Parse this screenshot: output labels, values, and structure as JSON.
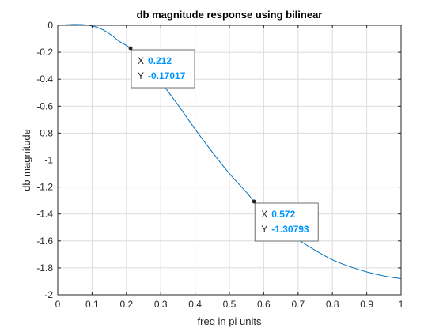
{
  "chart_data": {
    "type": "line",
    "title": "db magnitude response using bilinear",
    "xlabel": "freq in pi units",
    "ylabel": "db magnitude",
    "xlim": [
      0,
      1
    ],
    "ylim": [
      -2,
      0
    ],
    "xticks": [
      0,
      0.1,
      0.2,
      0.3,
      0.4,
      0.5,
      0.6,
      0.7,
      0.8,
      0.9,
      1
    ],
    "xtick_labels": [
      "0",
      "0.1",
      "0.2",
      "0.3",
      "0.4",
      "0.5",
      "0.6",
      "0.7",
      "0.8",
      "0.9",
      "1"
    ],
    "yticks": [
      0,
      -0.2,
      -0.4,
      -0.6,
      -0.8,
      -1,
      -1.2,
      -1.4,
      -1.6,
      -1.8,
      -2
    ],
    "ytick_labels": [
      "0",
      "-0.2",
      "-0.4",
      "-0.6",
      "-0.8",
      "-1",
      "-1.2",
      "-1.4",
      "-1.6",
      "-1.8",
      "-2"
    ],
    "grid": true,
    "line_color": "#0072BD",
    "series": [
      {
        "x": [
          0,
          0.02,
          0.04,
          0.06,
          0.08,
          0.1,
          0.12,
          0.14,
          0.16,
          0.18,
          0.2,
          0.212,
          0.25,
          0.3,
          0.35,
          0.4,
          0.45,
          0.5,
          0.55,
          0.572,
          0.6,
          0.65,
          0.7,
          0.75,
          0.8,
          0.85,
          0.9,
          0.95,
          1.0
        ],
        "y": [
          0,
          0.003,
          0.006,
          0.006,
          0.004,
          -0.005,
          -0.02,
          -0.045,
          -0.08,
          -0.12,
          -0.15,
          -0.17017,
          -0.26,
          -0.42,
          -0.59,
          -0.77,
          -0.94,
          -1.1,
          -1.24,
          -1.30793,
          -1.38,
          -1.49,
          -1.59,
          -1.67,
          -1.74,
          -1.79,
          -1.83,
          -1.86,
          -1.88
        ]
      }
    ],
    "datatips": [
      {
        "x_key": "X",
        "x_value": "0.212",
        "y_key": "Y",
        "y_value": "-0.17017",
        "x": 0.212,
        "y": -0.17017
      },
      {
        "x_key": "X",
        "x_value": "0.572",
        "y_key": "Y",
        "y_value": "-1.30793",
        "x": 0.572,
        "y": -1.30793
      }
    ],
    "datatip_value_color": "#0096FF"
  }
}
